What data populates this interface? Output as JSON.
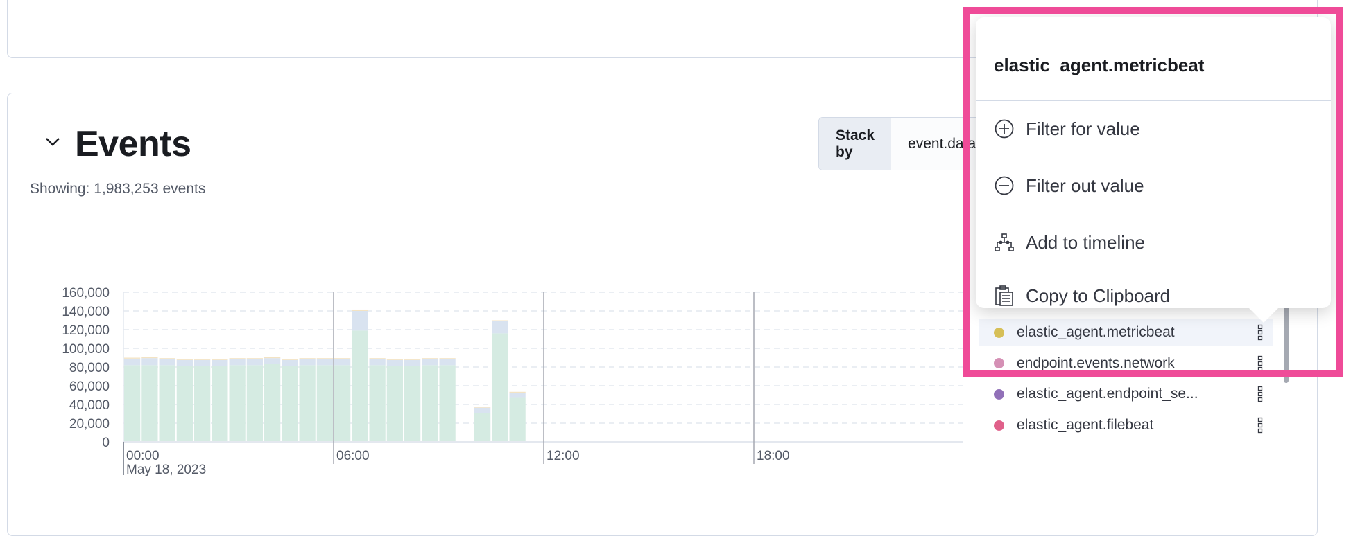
{
  "events": {
    "title": "Events",
    "showing": "Showing: 1,983,253 events",
    "stack_by_label": "Stack by",
    "stack_by_value": "event.dataset"
  },
  "chart_data": {
    "type": "bar",
    "stacked": true,
    "x": [
      "00:00",
      "00:30",
      "01:00",
      "01:30",
      "02:00",
      "02:30",
      "03:00",
      "03:30",
      "04:00",
      "04:30",
      "05:00",
      "05:30",
      "06:00",
      "06:30",
      "07:00",
      "07:30",
      "08:00",
      "08:30",
      "09:00",
      "09:30",
      "10:00",
      "10:30",
      "11:00"
    ],
    "series": [
      {
        "color": "#d5ebe2",
        "values": [
          82000,
          82000,
          82000,
          81000,
          81000,
          81000,
          82000,
          82000,
          83000,
          81000,
          82000,
          82000,
          82000,
          119000,
          82000,
          81000,
          81000,
          82000,
          82000,
          0,
          31000,
          116000,
          47000
        ]
      },
      {
        "color": "#d9e3f0",
        "values": [
          7000,
          7500,
          6500,
          6500,
          6500,
          6500,
          6500,
          6500,
          6500,
          6500,
          6500,
          6500,
          6500,
          21000,
          6500,
          6500,
          6500,
          6500,
          6500,
          0,
          5500,
          13000,
          5500
        ]
      },
      {
        "color": "#f3e3c3",
        "values": [
          1000,
          1000,
          1000,
          1000,
          1000,
          1000,
          1000,
          1000,
          1000,
          1000,
          1000,
          1000,
          1000,
          1500,
          1000,
          1000,
          1000,
          1000,
          1000,
          0,
          1000,
          1000,
          1000
        ]
      }
    ],
    "y_ticks": [
      "0",
      "20,000",
      "40,000",
      "60,000",
      "80,000",
      "100,000",
      "120,000",
      "140,000",
      "160,000"
    ],
    "ylim": [
      0,
      160000
    ],
    "x_ticks": [
      "00:00",
      "06:00",
      "12:00",
      "18:00"
    ],
    "x_date": "May 18, 2023",
    "grid": "horizontal dashed"
  },
  "legend": [
    {
      "label": "elastic_agent.metricbeat",
      "color": "#d6bf57",
      "highlighted": true
    },
    {
      "label": "endpoint.events.network",
      "color": "#d590b5"
    },
    {
      "label": "elastic_agent.endpoint_se...",
      "color": "#9170b8"
    },
    {
      "label": "elastic_agent.filebeat",
      "color": "#e0608a"
    }
  ],
  "popover": {
    "title": "elastic_agent.metricbeat",
    "items": [
      {
        "label": "Filter for value",
        "icon": "plus-in-circle-icon"
      },
      {
        "label": "Filter out value",
        "icon": "minus-in-circle-icon"
      },
      {
        "label": "Add to timeline",
        "icon": "timeline-icon"
      },
      {
        "label": "Copy to Clipboard",
        "icon": "copy-clipboard-icon"
      }
    ]
  },
  "highlight_color": "#ef4b98"
}
